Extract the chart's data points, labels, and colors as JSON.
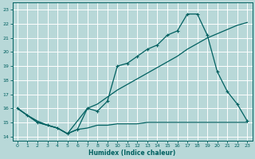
{
  "xlabel": "Humidex (Indice chaleur)",
  "background_color": "#b8d8d8",
  "grid_color": "#d4eaea",
  "line_color": "#006060",
  "xlim": [
    -0.5,
    23.5
  ],
  "ylim": [
    13.7,
    23.5
  ],
  "xticks": [
    0,
    1,
    2,
    3,
    4,
    5,
    6,
    7,
    8,
    9,
    10,
    11,
    12,
    13,
    14,
    15,
    16,
    17,
    18,
    19,
    20,
    21,
    22,
    23
  ],
  "yticks": [
    14,
    15,
    16,
    17,
    18,
    19,
    20,
    21,
    22,
    23
  ],
  "line1_x": [
    0,
    1,
    2,
    3,
    4,
    5,
    6,
    7,
    8,
    9,
    10,
    11,
    12,
    13,
    14,
    15,
    16,
    17,
    18,
    19,
    20,
    21,
    22,
    23
  ],
  "line1_y": [
    16.0,
    15.5,
    15.0,
    14.8,
    14.6,
    14.2,
    14.5,
    14.6,
    14.8,
    14.8,
    14.9,
    14.9,
    14.9,
    15.0,
    15.0,
    15.0,
    15.0,
    15.0,
    15.0,
    15.0,
    15.0,
    15.0,
    15.0,
    15.0
  ],
  "line2_x": [
    0,
    1,
    2,
    3,
    4,
    5,
    6,
    7,
    8,
    9,
    10,
    11,
    12,
    13,
    14,
    15,
    16,
    17,
    18,
    19,
    20,
    21,
    22,
    23
  ],
  "line2_y": [
    16.0,
    15.5,
    15.1,
    14.8,
    14.6,
    14.2,
    15.1,
    16.0,
    16.3,
    16.8,
    17.3,
    17.7,
    18.1,
    18.5,
    18.9,
    19.3,
    19.7,
    20.2,
    20.6,
    21.0,
    21.3,
    21.6,
    21.9,
    22.1
  ],
  "line3_x": [
    0,
    1,
    2,
    3,
    4,
    5,
    6,
    7,
    8,
    9,
    10,
    11,
    12,
    13,
    14,
    15,
    16,
    17,
    18,
    19,
    20,
    21,
    22,
    23
  ],
  "line3_y": [
    16.0,
    15.5,
    15.0,
    14.8,
    14.6,
    14.2,
    14.5,
    16.0,
    15.8,
    16.5,
    19.0,
    19.2,
    19.7,
    20.2,
    20.5,
    21.2,
    21.5,
    22.7,
    22.7,
    21.2,
    18.6,
    17.2,
    16.3,
    15.1
  ]
}
